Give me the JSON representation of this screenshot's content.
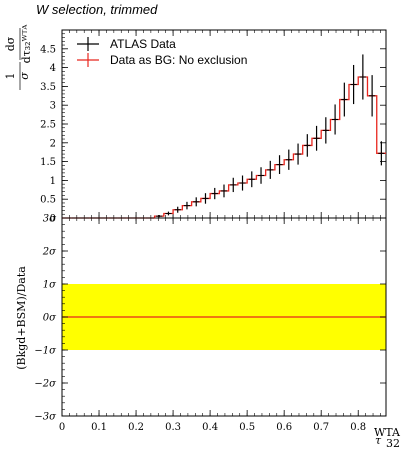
{
  "chart_data": [
    {
      "type": "step",
      "title": "W selection, trimmed",
      "ylabel_fraction": "1/σ dσ/dτ32WTA",
      "xlim": [
        0,
        0.875
      ],
      "ylim": [
        0,
        5
      ],
      "y_ticks": [
        "0.5",
        "1",
        "1.5",
        "2",
        "2.5",
        "3",
        "3.5",
        "4",
        "4.5"
      ],
      "y_ticks_top": [
        "3σ",
        "0"
      ],
      "legend": {
        "placement": "top-left",
        "entries": [
          {
            "label": "ATLAS Data",
            "color": "#000000"
          },
          {
            "label": "Data as BG: No exclusion",
            "color": "#e8261e"
          }
        ]
      },
      "bin_edges": [
        0,
        0.025,
        0.05,
        0.075,
        0.1,
        0.125,
        0.15,
        0.175,
        0.2,
        0.225,
        0.25,
        0.275,
        0.3,
        0.325,
        0.35,
        0.375,
        0.4,
        0.425,
        0.45,
        0.475,
        0.5,
        0.525,
        0.55,
        0.575,
        0.6,
        0.625,
        0.65,
        0.675,
        0.7,
        0.725,
        0.75,
        0.775,
        0.8,
        0.825,
        0.85,
        0.875
      ],
      "series": [
        {
          "name": "ATLAS Data",
          "values": [
            0,
            0,
            0,
            0,
            0,
            0,
            0,
            0,
            0,
            0,
            0.05,
            0.12,
            0.22,
            0.33,
            0.43,
            0.52,
            0.65,
            0.72,
            0.88,
            0.93,
            1.03,
            1.13,
            1.28,
            1.42,
            1.55,
            1.7,
            1.93,
            2.12,
            2.33,
            2.62,
            3.15,
            3.55,
            3.75,
            3.25,
            1.72
          ],
          "errors": [
            0,
            0,
            0,
            0,
            0,
            0,
            0,
            0,
            0,
            0,
            0.03,
            0.05,
            0.08,
            0.1,
            0.12,
            0.14,
            0.15,
            0.17,
            0.19,
            0.2,
            0.21,
            0.22,
            0.24,
            0.25,
            0.27,
            0.28,
            0.3,
            0.33,
            0.35,
            0.4,
            0.45,
            0.52,
            0.6,
            0.55,
            0.32
          ]
        },
        {
          "name": "Data as BG: No exclusion",
          "values": [
            0,
            0,
            0,
            0,
            0,
            0,
            0,
            0,
            0,
            0,
            0.05,
            0.12,
            0.22,
            0.33,
            0.43,
            0.52,
            0.65,
            0.72,
            0.88,
            0.93,
            1.03,
            1.13,
            1.28,
            1.42,
            1.55,
            1.7,
            1.93,
            2.12,
            2.33,
            2.62,
            3.15,
            3.55,
            3.75,
            3.25,
            1.72
          ]
        }
      ]
    },
    {
      "type": "band",
      "ylabel": "(Bkgd+BSM)/Data",
      "xlabel": "τ32WTA",
      "xlim": [
        0,
        0.875
      ],
      "ylim": [
        -3,
        3
      ],
      "x_ticks": [
        "0",
        "0.1",
        "0.2",
        "0.3",
        "0.4",
        "0.5",
        "0.6",
        "0.7",
        "0.8"
      ],
      "y_ticks": [
        "2σ",
        "1σ",
        "0σ",
        "−1σ",
        "−2σ",
        "−3σ"
      ],
      "band": {
        "low": -1,
        "high": 1,
        "color": "#ffff00"
      },
      "line": {
        "value": 0,
        "color": "#e8261e"
      }
    }
  ]
}
